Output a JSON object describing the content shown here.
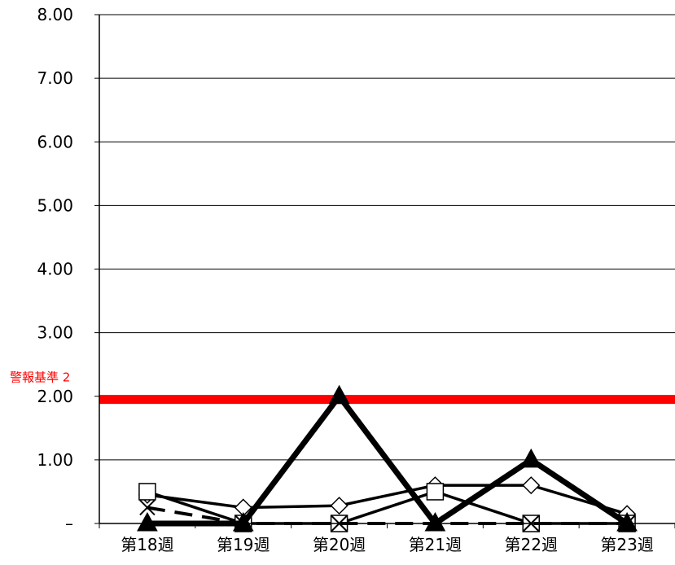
{
  "chart_data": {
    "type": "line",
    "categories": [
      "第18週",
      "第19週",
      "第20週",
      "第21週",
      "第22週",
      "第23週"
    ],
    "y_tick_labels": [
      "–",
      "1.00",
      "2.00",
      "3.00",
      "4.00",
      "5.00",
      "6.00",
      "7.00",
      "8.00"
    ],
    "ylim": [
      0,
      8
    ],
    "grid": "horizontal",
    "legend": "none",
    "reference_line": {
      "label": "警報基準 2",
      "value": 1.95,
      "color": "#ff0000"
    },
    "series": [
      {
        "marker": "diamond",
        "line": "solid-thin",
        "values": [
          0.45,
          0.25,
          0.28,
          0.6,
          0.6,
          0.15
        ]
      },
      {
        "marker": "square",
        "line": "solid",
        "values": [
          0.5,
          0.0,
          0.0,
          0.5,
          0.0,
          0.0
        ]
      },
      {
        "marker": "x",
        "line": "dashed",
        "values": [
          0.25,
          0.0,
          0.0,
          0.0,
          0.0,
          0.0
        ]
      },
      {
        "marker": "triangle",
        "line": "solid-thick",
        "values": [
          0.0,
          0.0,
          2.0,
          0.0,
          1.0,
          0.0
        ]
      }
    ]
  }
}
